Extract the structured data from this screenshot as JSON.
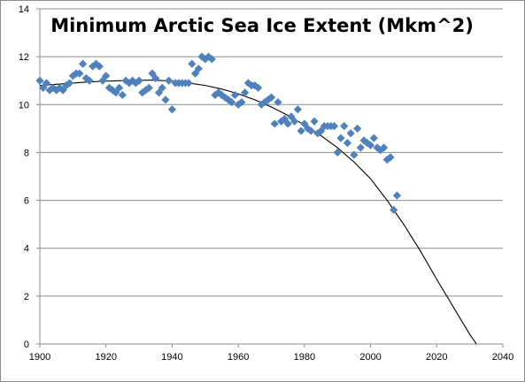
{
  "chart_data": {
    "type": "scatter",
    "title": "Minimum Arctic Sea Ice Extent (Mkm^2)",
    "xlabel": "",
    "ylabel": "",
    "xlim": [
      1900,
      2040
    ],
    "ylim": [
      0,
      14
    ],
    "x_ticks": [
      1900,
      1920,
      1940,
      1960,
      1980,
      2000,
      2020,
      2040
    ],
    "y_ticks": [
      0,
      2,
      4,
      6,
      8,
      10,
      12,
      14
    ],
    "grid": "horizontal",
    "legend": "none",
    "marker": "diamond",
    "marker_color": "#4F81BD",
    "trendline": {
      "type": "polynomial",
      "color": "#000000",
      "x": [
        1900,
        1905,
        1910,
        1915,
        1920,
        1925,
        1930,
        1935,
        1940,
        1945,
        1950,
        1955,
        1960,
        1965,
        1970,
        1975,
        1980,
        1985,
        1990,
        1995,
        2000,
        2005,
        2010,
        2015,
        2020,
        2025,
        2030,
        2032
      ],
      "y": [
        10.8,
        10.85,
        10.9,
        10.95,
        10.98,
        11.0,
        11.02,
        11.02,
        10.98,
        10.9,
        10.8,
        10.65,
        10.45,
        10.2,
        9.9,
        9.55,
        9.15,
        8.7,
        8.2,
        7.6,
        6.9,
        6.0,
        5.0,
        3.9,
        2.7,
        1.55,
        0.4,
        0.0
      ]
    },
    "points": [
      [
        1900,
        11.0
      ],
      [
        1901,
        10.7
      ],
      [
        1902,
        10.9
      ],
      [
        1903,
        10.6
      ],
      [
        1904,
        10.7
      ],
      [
        1905,
        10.6
      ],
      [
        1906,
        10.7
      ],
      [
        1907,
        10.6
      ],
      [
        1908,
        10.8
      ],
      [
        1909,
        10.9
      ],
      [
        1910,
        11.2
      ],
      [
        1911,
        11.3
      ],
      [
        1912,
        11.3
      ],
      [
        1913,
        11.7
      ],
      [
        1914,
        11.1
      ],
      [
        1915,
        11.0
      ],
      [
        1916,
        11.6
      ],
      [
        1917,
        11.7
      ],
      [
        1918,
        11.6
      ],
      [
        1919,
        11.0
      ],
      [
        1920,
        11.2
      ],
      [
        1921,
        10.7
      ],
      [
        1922,
        10.6
      ],
      [
        1923,
        10.5
      ],
      [
        1924,
        10.7
      ],
      [
        1925,
        10.4
      ],
      [
        1926,
        11.0
      ],
      [
        1927,
        10.9
      ],
      [
        1928,
        11.0
      ],
      [
        1929,
        10.9
      ],
      [
        1930,
        11.0
      ],
      [
        1931,
        10.5
      ],
      [
        1932,
        10.6
      ],
      [
        1933,
        10.7
      ],
      [
        1934,
        11.3
      ],
      [
        1935,
        11.1
      ],
      [
        1936,
        10.5
      ],
      [
        1937,
        10.7
      ],
      [
        1938,
        10.2
      ],
      [
        1939,
        11.0
      ],
      [
        1940,
        9.8
      ],
      [
        1941,
        10.9
      ],
      [
        1942,
        10.9
      ],
      [
        1943,
        10.9
      ],
      [
        1944,
        10.9
      ],
      [
        1945,
        10.9
      ],
      [
        1946,
        11.7
      ],
      [
        1947,
        11.3
      ],
      [
        1948,
        11.5
      ],
      [
        1949,
        12.0
      ],
      [
        1950,
        11.9
      ],
      [
        1951,
        12.0
      ],
      [
        1952,
        11.9
      ],
      [
        1953,
        10.4
      ],
      [
        1954,
        10.5
      ],
      [
        1955,
        10.4
      ],
      [
        1956,
        10.3
      ],
      [
        1957,
        10.2
      ],
      [
        1958,
        10.1
      ],
      [
        1959,
        10.4
      ],
      [
        1960,
        10.0
      ],
      [
        1961,
        10.1
      ],
      [
        1962,
        10.5
      ],
      [
        1963,
        10.9
      ],
      [
        1964,
        10.8
      ],
      [
        1965,
        10.8
      ],
      [
        1966,
        10.7
      ],
      [
        1967,
        10.0
      ],
      [
        1968,
        10.1
      ],
      [
        1969,
        10.2
      ],
      [
        1970,
        10.3
      ],
      [
        1971,
        9.2
      ],
      [
        1972,
        10.1
      ],
      [
        1973,
        9.3
      ],
      [
        1974,
        9.4
      ],
      [
        1975,
        9.2
      ],
      [
        1976,
        9.5
      ],
      [
        1977,
        9.3
      ],
      [
        1978,
        9.8
      ],
      [
        1979,
        8.9
      ],
      [
        1980,
        9.2
      ],
      [
        1981,
        9.0
      ],
      [
        1982,
        8.9
      ],
      [
        1983,
        9.3
      ],
      [
        1984,
        8.8
      ],
      [
        1985,
        8.9
      ],
      [
        1986,
        9.1
      ],
      [
        1987,
        9.1
      ],
      [
        1988,
        9.1
      ],
      [
        1989,
        9.1
      ],
      [
        1990,
        8.0
      ],
      [
        1991,
        8.6
      ],
      [
        1992,
        9.1
      ],
      [
        1993,
        8.4
      ],
      [
        1994,
        8.8
      ],
      [
        1995,
        7.9
      ],
      [
        1996,
        9.0
      ],
      [
        1997,
        8.2
      ],
      [
        1998,
        8.5
      ],
      [
        1999,
        8.4
      ],
      [
        2000,
        8.3
      ],
      [
        2001,
        8.6
      ],
      [
        2002,
        8.2
      ],
      [
        2003,
        8.1
      ],
      [
        2004,
        8.2
      ],
      [
        2005,
        7.7
      ],
      [
        2006,
        7.8
      ],
      [
        2007,
        5.6
      ],
      [
        2008,
        6.2
      ]
    ]
  }
}
